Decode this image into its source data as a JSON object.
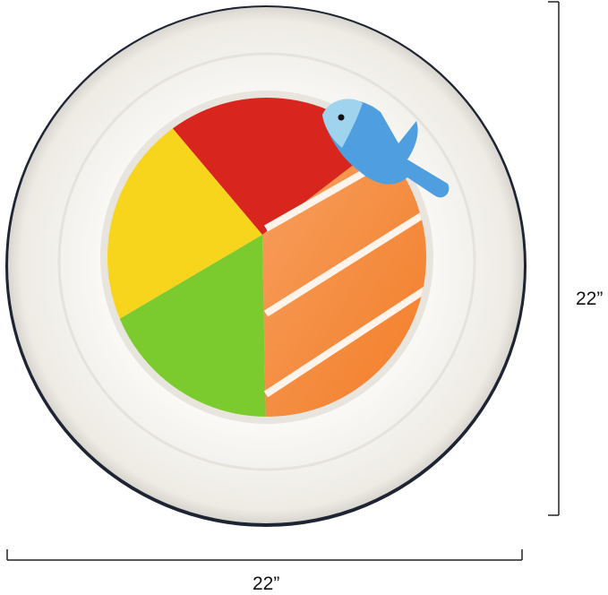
{
  "product": {
    "height_label": "22”",
    "width_label": "22”",
    "colors": {
      "rice": "#f7f5f1",
      "red": "#d8261e",
      "yellow": "#f6d51c",
      "green": "#7ccb2e",
      "orange": "#f58a3b",
      "fish": "#4f9ee0"
    }
  }
}
